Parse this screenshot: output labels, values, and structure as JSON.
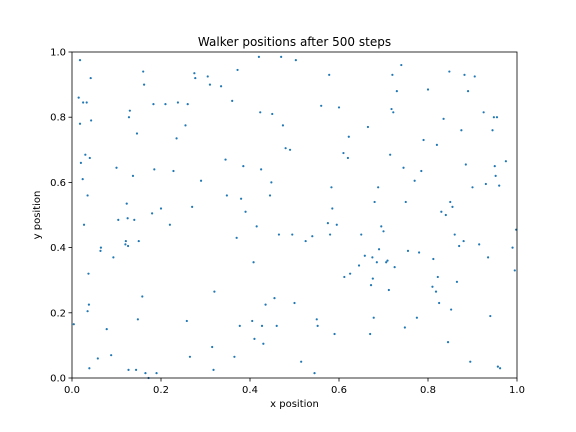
{
  "chart_data": {
    "type": "scatter",
    "title": "Walker positions after 500 steps",
    "xlabel": "x position",
    "ylabel": "y position",
    "xlim": [
      0.0,
      1.0
    ],
    "ylim": [
      0.0,
      1.0
    ],
    "xticks": [
      "0.0",
      "0.2",
      "0.4",
      "0.6",
      "0.8",
      "1.0"
    ],
    "yticks": [
      "0.0",
      "0.2",
      "0.4",
      "0.6",
      "0.8",
      "1.0"
    ],
    "grid": false,
    "legend": "none",
    "marker_color": "#1f77b4",
    "series": [
      {
        "points": [
          [
            0.004,
            0.165
          ],
          [
            0.015,
            0.86
          ],
          [
            0.018,
            0.975
          ],
          [
            0.018,
            0.78
          ],
          [
            0.02,
            0.66
          ],
          [
            0.024,
            0.61
          ],
          [
            0.025,
            0.845
          ],
          [
            0.027,
            0.47
          ],
          [
            0.03,
            0.685
          ],
          [
            0.033,
            0.845
          ],
          [
            0.035,
            0.205
          ],
          [
            0.035,
            0.56
          ],
          [
            0.037,
            0.32
          ],
          [
            0.038,
            0.225
          ],
          [
            0.039,
            0.03
          ],
          [
            0.04,
            0.675
          ],
          [
            0.042,
            0.92
          ],
          [
            0.043,
            0.79
          ],
          [
            0.058,
            0.06
          ],
          [
            0.064,
            0.39
          ],
          [
            0.065,
            0.4
          ],
          [
            0.078,
            0.15
          ],
          [
            0.088,
            0.07
          ],
          [
            0.093,
            0.37
          ],
          [
            0.1,
            0.645
          ],
          [
            0.104,
            0.485
          ],
          [
            0.12,
            0.41
          ],
          [
            0.121,
            0.42
          ],
          [
            0.123,
            0.535
          ],
          [
            0.125,
            0.49
          ],
          [
            0.126,
            0.405
          ],
          [
            0.127,
            0.025
          ],
          [
            0.128,
            0.8
          ],
          [
            0.13,
            0.82
          ],
          [
            0.137,
            0.62
          ],
          [
            0.14,
            0.485
          ],
          [
            0.144,
            0.025
          ],
          [
            0.146,
            0.75
          ],
          [
            0.148,
            0.18
          ],
          [
            0.15,
            0.42
          ],
          [
            0.158,
            0.25
          ],
          [
            0.16,
            0.94
          ],
          [
            0.162,
            0.9
          ],
          [
            0.165,
            0.015
          ],
          [
            0.172,
            0.0
          ],
          [
            0.18,
            0.505
          ],
          [
            0.183,
            0.84
          ],
          [
            0.185,
            0.64
          ],
          [
            0.19,
            0.015
          ],
          [
            0.2,
            0.52
          ],
          [
            0.21,
            0.84
          ],
          [
            0.22,
            0.47
          ],
          [
            0.228,
            0.635
          ],
          [
            0.235,
            0.735
          ],
          [
            0.238,
            0.845
          ],
          [
            0.255,
            0.775
          ],
          [
            0.258,
            0.175
          ],
          [
            0.26,
            0.84
          ],
          [
            0.265,
            0.065
          ],
          [
            0.27,
            0.525
          ],
          [
            0.275,
            0.935
          ],
          [
            0.277,
            0.92
          ],
          [
            0.29,
            0.605
          ],
          [
            0.305,
            0.925
          ],
          [
            0.31,
            0.9
          ],
          [
            0.315,
            0.095
          ],
          [
            0.318,
            0.025
          ],
          [
            0.32,
            0.265
          ],
          [
            0.335,
            0.895
          ],
          [
            0.345,
            0.67
          ],
          [
            0.348,
            0.56
          ],
          [
            0.36,
            0.85
          ],
          [
            0.365,
            0.065
          ],
          [
            0.37,
            0.43
          ],
          [
            0.372,
            0.945
          ],
          [
            0.377,
            0.16
          ],
          [
            0.38,
            0.55
          ],
          [
            0.385,
            0.65
          ],
          [
            0.39,
            0.51
          ],
          [
            0.405,
            0.175
          ],
          [
            0.408,
            0.355
          ],
          [
            0.41,
            0.12
          ],
          [
            0.415,
            0.465
          ],
          [
            0.42,
            0.985
          ],
          [
            0.423,
            0.815
          ],
          [
            0.425,
            0.64
          ],
          [
            0.427,
            0.16
          ],
          [
            0.43,
            0.105
          ],
          [
            0.435,
            0.225
          ],
          [
            0.445,
            0.56
          ],
          [
            0.448,
            0.6
          ],
          [
            0.45,
            0.81
          ],
          [
            0.455,
            0.245
          ],
          [
            0.46,
            0.16
          ],
          [
            0.465,
            0.44
          ],
          [
            0.47,
            0.985
          ],
          [
            0.474,
            0.775
          ],
          [
            0.48,
            0.705
          ],
          [
            0.49,
            0.7
          ],
          [
            0.495,
            0.44
          ],
          [
            0.5,
            0.23
          ],
          [
            0.503,
            0.975
          ],
          [
            0.515,
            0.05
          ],
          [
            0.525,
            0.42
          ],
          [
            0.54,
            0.435
          ],
          [
            0.545,
            0.015
          ],
          [
            0.55,
            0.18
          ],
          [
            0.552,
            0.16
          ],
          [
            0.56,
            0.835
          ],
          [
            0.575,
            0.475
          ],
          [
            0.578,
            0.93
          ],
          [
            0.58,
            0.44
          ],
          [
            0.583,
            0.585
          ],
          [
            0.585,
            0.52
          ],
          [
            0.59,
            0.135
          ],
          [
            0.595,
            0.47
          ],
          [
            0.6,
            0.83
          ],
          [
            0.61,
            0.69
          ],
          [
            0.612,
            0.31
          ],
          [
            0.62,
            0.675
          ],
          [
            0.622,
            0.74
          ],
          [
            0.625,
            0.32
          ],
          [
            0.645,
            0.345
          ],
          [
            0.65,
            0.44
          ],
          [
            0.658,
            0.375
          ],
          [
            0.665,
            0.77
          ],
          [
            0.67,
            0.135
          ],
          [
            0.672,
            0.285
          ],
          [
            0.675,
            0.37
          ],
          [
            0.676,
            0.305
          ],
          [
            0.678,
            0.185
          ],
          [
            0.68,
            0.54
          ],
          [
            0.685,
            0.355
          ],
          [
            0.688,
            0.585
          ],
          [
            0.69,
            0.395
          ],
          [
            0.695,
            0.465
          ],
          [
            0.7,
            0.45
          ],
          [
            0.706,
            0.355
          ],
          [
            0.709,
            0.36
          ],
          [
            0.712,
            0.27
          ],
          [
            0.715,
            0.685
          ],
          [
            0.718,
            0.825
          ],
          [
            0.72,
            0.93
          ],
          [
            0.722,
            0.815
          ],
          [
            0.725,
            0.34
          ],
          [
            0.73,
            0.88
          ],
          [
            0.74,
            0.96
          ],
          [
            0.745,
            0.645
          ],
          [
            0.748,
            0.155
          ],
          [
            0.75,
            0.54
          ],
          [
            0.755,
            0.39
          ],
          [
            0.77,
            0.605
          ],
          [
            0.775,
            0.185
          ],
          [
            0.78,
            0.385
          ],
          [
            0.785,
            0.635
          ],
          [
            0.79,
            0.73
          ],
          [
            0.8,
            0.885
          ],
          [
            0.81,
            0.28
          ],
          [
            0.812,
            0.365
          ],
          [
            0.818,
            0.265
          ],
          [
            0.82,
            0.715
          ],
          [
            0.822,
            0.31
          ],
          [
            0.825,
            0.23
          ],
          [
            0.83,
            0.51
          ],
          [
            0.835,
            0.795
          ],
          [
            0.84,
            0.5
          ],
          [
            0.845,
            0.11
          ],
          [
            0.848,
            0.94
          ],
          [
            0.85,
            0.54
          ],
          [
            0.852,
            0.21
          ],
          [
            0.855,
            0.525
          ],
          [
            0.86,
            0.44
          ],
          [
            0.865,
            0.295
          ],
          [
            0.87,
            0.405
          ],
          [
            0.875,
            0.76
          ],
          [
            0.88,
            0.42
          ],
          [
            0.882,
            0.93
          ],
          [
            0.885,
            0.655
          ],
          [
            0.89,
            0.88
          ],
          [
            0.895,
            0.05
          ],
          [
            0.9,
            0.585
          ],
          [
            0.905,
            0.925
          ],
          [
            0.915,
            0.41
          ],
          [
            0.925,
            0.815
          ],
          [
            0.93,
            0.595
          ],
          [
            0.935,
            0.37
          ],
          [
            0.94,
            0.19
          ],
          [
            0.945,
            0.76
          ],
          [
            0.948,
            0.8
          ],
          [
            0.95,
            0.65
          ],
          [
            0.952,
            0.62
          ],
          [
            0.955,
            0.8
          ],
          [
            0.957,
            0.035
          ],
          [
            0.96,
            0.59
          ],
          [
            0.962,
            0.03
          ],
          [
            0.975,
            0.665
          ],
          [
            0.99,
            0.4
          ],
          [
            0.995,
            0.33
          ],
          [
            0.998,
            0.455
          ]
        ]
      }
    ]
  }
}
